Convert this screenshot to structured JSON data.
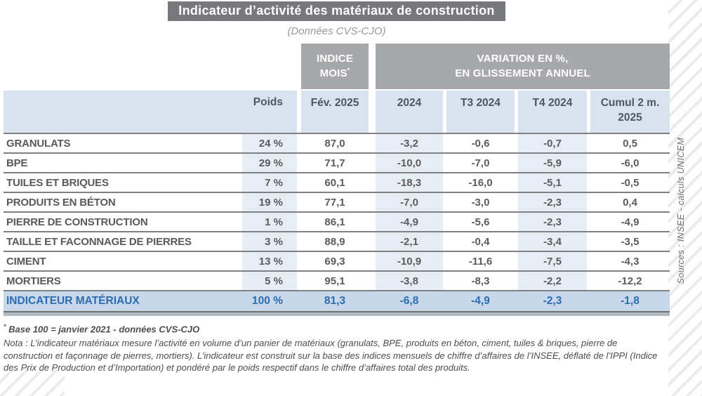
{
  "page": {
    "title": "Indicateur d’activité des matériaux de construction",
    "subtitle": "(Données CVS-CJO)",
    "source_vertical": "Sources : INSEE - calculs UNICEM"
  },
  "table": {
    "group_headers": {
      "indice_line1": "INDICE",
      "indice_line2": "MOIS",
      "indice_sup": "*",
      "variation_line1": "VARIATION EN %,",
      "variation_line2": "EN GLISSEMENT ANNUEL"
    },
    "columns": {
      "poids": "Poids",
      "fev": "Fév. 2025",
      "y2024": "2024",
      "t3": "T3 2024",
      "t4": "T4 2024",
      "cumul_line1": "Cumul 2 m.",
      "cumul_line2": "2025"
    },
    "rows": [
      {
        "label": "GRANULATS",
        "poids": "24 %",
        "fev": "87,0",
        "y2024": "-3,2",
        "t3": "-0,6",
        "t4": "-0,7",
        "cumul": "0,5"
      },
      {
        "label": "BPE",
        "poids": "29 %",
        "fev": "71,7",
        "y2024": "-10,0",
        "t3": "-7,0",
        "t4": "-5,9",
        "cumul": "-6,0"
      },
      {
        "label": "TUILES ET BRIQUES",
        "poids": "7 %",
        "fev": "60,1",
        "y2024": "-18,3",
        "t3": "-16,0",
        "t4": "-5,1",
        "cumul": "-0,5"
      },
      {
        "label": "PRODUITS EN BÉTON",
        "poids": "19 %",
        "fev": "77,1",
        "y2024": "-7,0",
        "t3": "-3,0",
        "t4": "-2,3",
        "cumul": "0,4"
      },
      {
        "label": "PIERRE DE CONSTRUCTION",
        "poids": "1 %",
        "fev": "86,1",
        "y2024": "-4,9",
        "t3": "-5,6",
        "t4": "-2,3",
        "cumul": "-4,9"
      },
      {
        "label": "TAILLE ET FACONNAGE DE PIERRES",
        "poids": "3 %",
        "fev": "88,9",
        "y2024": "-2,1",
        "t3": "-0,4",
        "t4": "-3,4",
        "cumul": "-3,5"
      },
      {
        "label": "CIMENT",
        "poids": "13 %",
        "fev": "69,3",
        "y2024": "-10,9",
        "t3": "-11,6",
        "t4": "-7,5",
        "cumul": "-4,3"
      },
      {
        "label": "MORTIERS",
        "poids": "5 %",
        "fev": "95,1",
        "y2024": "-3,8",
        "t3": "-8,3",
        "t4": "-2,2",
        "cumul": "-12,2"
      }
    ],
    "total_row": {
      "label": "INDICATEUR MATÉRIAUX",
      "poids": "100 %",
      "fev": "81,3",
      "y2024": "-6,8",
      "t3": "-4,9",
      "t4": "-2,3",
      "cumul": "-1,8"
    }
  },
  "footnotes": {
    "base_star": "*",
    "base": " Base 100 = janvier 2021 - données CVS-CJO",
    "nota": "Nota :  L’indicateur matériaux mesure l’activité en volume d’un panier de matériaux (granulats, BPE, produits en béton, ciment, tuiles & briques, pierre de construction et façonnage de pierres, mortiers). L’indicateur est construit sur la base des indices mensuels de chiffre d’affaires de l’INSEE, déflaté de l’IPPI (Indice des Prix de Production et d’Importation) et pondéré par le poids respectif dans le chiffre d’affaires total des produits."
  },
  "colors": {
    "title_bar_bg": "#77787c",
    "group_header_bg": "#a6a8ab",
    "column_header_bg": "#d9e3f0",
    "column_tint_bg": "#e7edf5",
    "total_row_bg": "#c8d7ea",
    "total_text": "#2c6cb0",
    "body_text": "#58595b",
    "separator": "#7f8184"
  }
}
